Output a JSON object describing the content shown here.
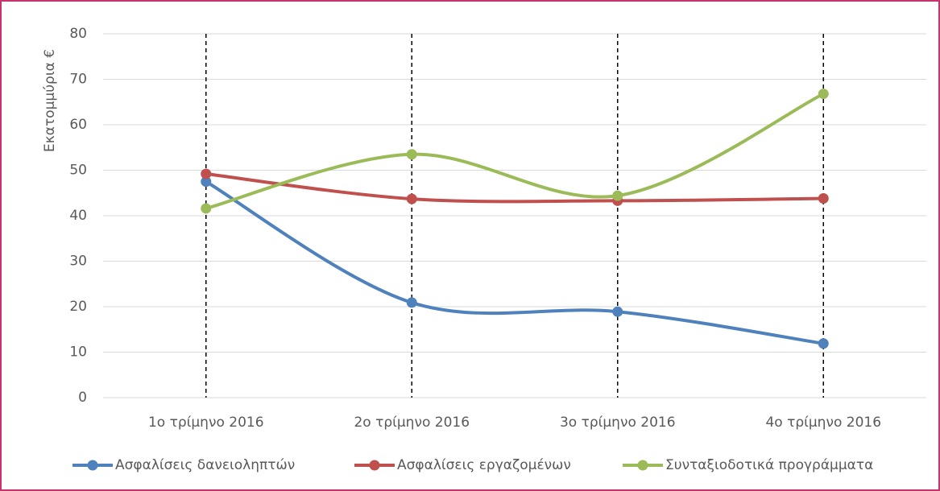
{
  "chart_data": {
    "type": "line",
    "y_label": "Εκατομμύρια €",
    "categories": [
      "1ο τρίμηνο 2016",
      "2ο τρίμηνο 2016",
      "3ο τρίμηνο 2016",
      "4ο τρίμηνο 2016"
    ],
    "series": [
      {
        "name": "Ασφαλίσεις δανειοληπτών",
        "color": "#4f81bd",
        "values": [
          47.5,
          20.9,
          18.9,
          11.9
        ]
      },
      {
        "name": "Ασφαλίσεις εργαζομένων",
        "color": "#c0504d",
        "values": [
          49.2,
          43.7,
          43.3,
          43.8
        ]
      },
      {
        "name": "Συνταξιοδοτικά προγράμματα",
        "color": "#9bbb59",
        "values": [
          41.6,
          53.5,
          44.4,
          66.8
        ]
      }
    ],
    "smooth": true,
    "ylim": [
      0,
      80
    ],
    "yticks": [
      0,
      10,
      20,
      30,
      40,
      50,
      60,
      70,
      80
    ],
    "grid": true,
    "legend": "bottom"
  }
}
